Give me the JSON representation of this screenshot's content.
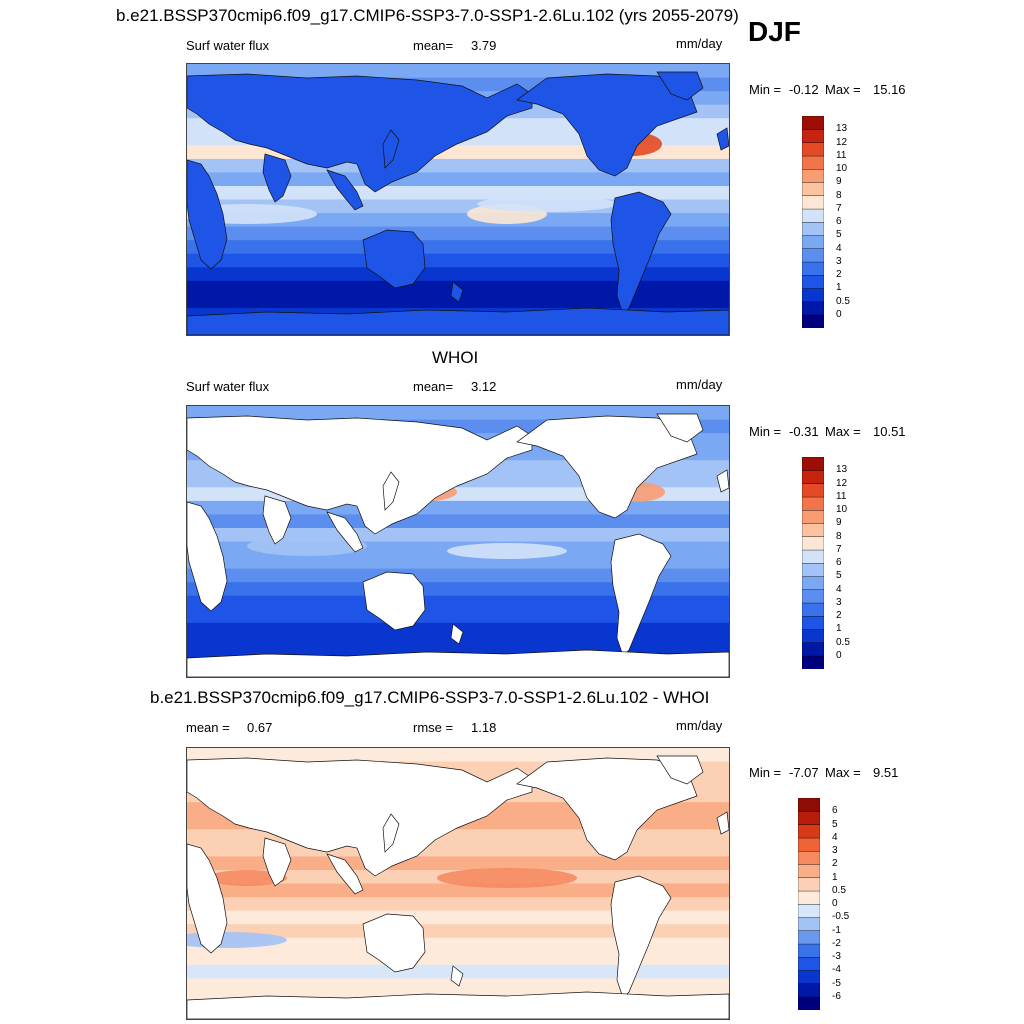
{
  "header": {
    "title": "b.e21.BSSP370cmip6.f09_g17.CMIP6-SSP3-7.0-SSP1-2.6Lu.102 (yrs 2055-2079)",
    "season": "DJF"
  },
  "colors": {
    "land_bg": "#ffffff",
    "coast": "#111111"
  },
  "chart_data": [
    {
      "type": "heatmap",
      "title": "b.e21.BSSP370cmip6.f09_g17.CMIP6-SSP3-7.0-SSP1-2.6Lu.102 (yrs 2055-2079)",
      "variable": "Surf water flux",
      "mean_label": "mean=",
      "mean_value": "3.79",
      "units": "mm/day",
      "min_label": "Min =",
      "min_value": "-0.12",
      "max_label": "Max =",
      "max_value": "15.16",
      "levels": [
        "0",
        "0.5",
        "1",
        "2",
        "3",
        "4",
        "5",
        "6",
        "7",
        "8",
        "9",
        "10",
        "11",
        "12",
        "13"
      ],
      "colors": [
        "#00007f",
        "#0018a8",
        "#0a36d0",
        "#1f55e6",
        "#3a72ec",
        "#5b8eef",
        "#7ba8f2",
        "#a3c2f5",
        "#d2e2f8",
        "#fde7d4",
        "#fbc3a0",
        "#f89c72",
        "#f2754a",
        "#e34a25",
        "#c6240f",
        "#9d0f06"
      ]
    },
    {
      "type": "heatmap",
      "title": "WHOI",
      "variable": "Surf water flux",
      "mean_label": "mean=",
      "mean_value": "3.12",
      "units": "mm/day",
      "min_label": "Min =",
      "min_value": "-0.31",
      "max_label": "Max =",
      "max_value": "10.51",
      "levels": [
        "0",
        "0.5",
        "1",
        "2",
        "3",
        "4",
        "5",
        "6",
        "7",
        "8",
        "9",
        "10",
        "11",
        "12",
        "13"
      ],
      "colors": [
        "#00007f",
        "#0018a8",
        "#0a36d0",
        "#1f55e6",
        "#3a72ec",
        "#5b8eef",
        "#7ba8f2",
        "#a3c2f5",
        "#d2e2f8",
        "#fde7d4",
        "#fbc3a0",
        "#f89c72",
        "#f2754a",
        "#e34a25",
        "#c6240f",
        "#9d0f06"
      ]
    },
    {
      "type": "heatmap",
      "title": "b.e21.BSSP370cmip6.f09_g17.CMIP6-SSP3-7.0-SSP1-2.6Lu.102 - WHOI",
      "mean_label": "mean =",
      "mean_value": "0.67",
      "rmse_label": "rmse =",
      "rmse_value": "1.18",
      "units": "mm/day",
      "min_label": "Min =",
      "min_value": "-7.07",
      "max_label": "Max =",
      "max_value": "9.51",
      "levels": [
        "-6",
        "-5",
        "-4",
        "-3",
        "-2",
        "-1",
        "-0.5",
        "0",
        "0.5",
        "1",
        "2",
        "3",
        "4",
        "5",
        "6"
      ],
      "colors": [
        "#00007f",
        "#0018a8",
        "#0a36d0",
        "#1f55e6",
        "#3a72ec",
        "#6b98ef",
        "#a3c2f5",
        "#d7e6f8",
        "#fdeadb",
        "#fbd0b4",
        "#f9ae88",
        "#f58a60",
        "#ee6236",
        "#d63a17",
        "#b81c0b",
        "#8f0c05"
      ]
    }
  ]
}
